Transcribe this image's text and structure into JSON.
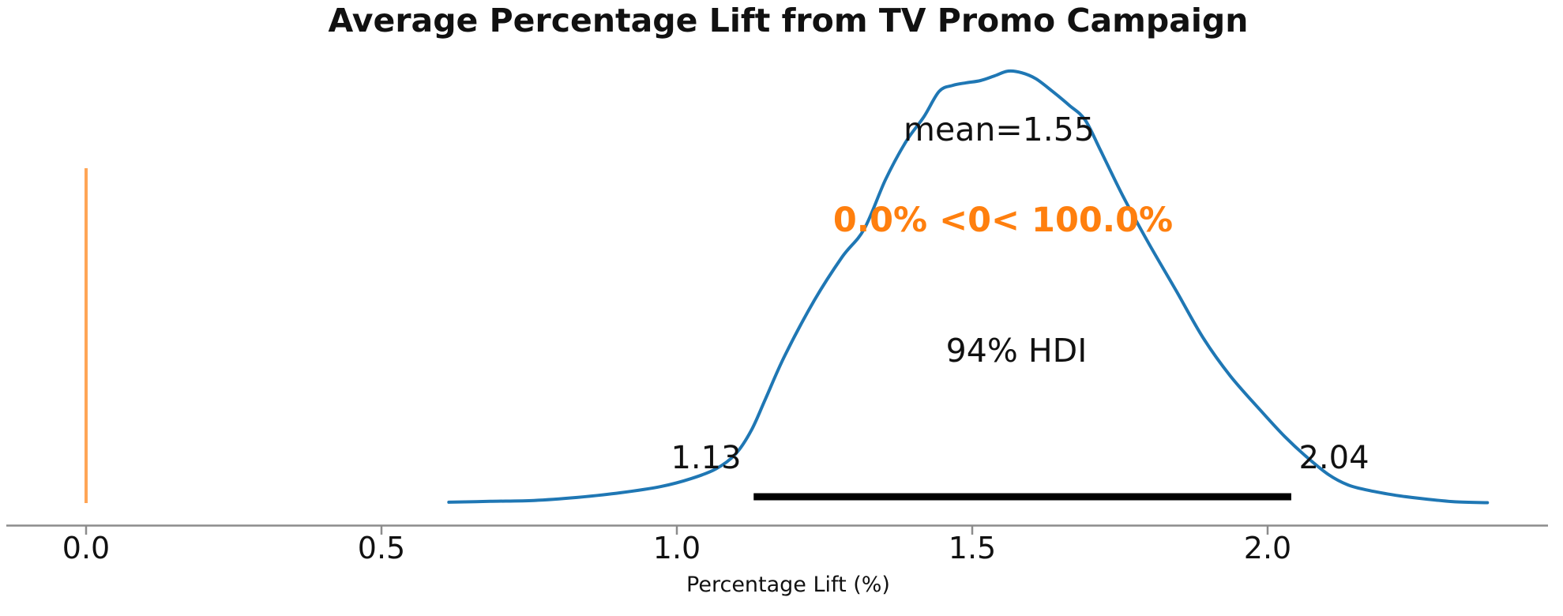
{
  "chart_data": {
    "type": "kde",
    "title": "Average Percentage Lift from TV Promo Campaign",
    "xlabel": "Percentage Lift (%)",
    "x_ticks": [
      0.0,
      0.5,
      1.0,
      1.5,
      2.0
    ],
    "x_tick_labels": [
      "0.0",
      "0.5",
      "1.0",
      "1.5",
      "2.0"
    ],
    "xlim": [
      -0.14,
      2.5
    ],
    "grid": false,
    "legend": "none",
    "mean": 1.55,
    "mean_label": "mean=1.55",
    "hdi": {
      "prob": "94%",
      "label": "94% HDI",
      "lower": 1.13,
      "upper": 2.04,
      "lower_label": "1.13",
      "upper_label": "2.04"
    },
    "ref_val": {
      "value": 0,
      "label": "0.0% <0< 100.0%",
      "pct_below": "0.0%",
      "pct_above": "100.0%"
    },
    "colors": {
      "curve": "#1f77b4",
      "ref_line": "#ff7f0e",
      "ref_text": "#ff7f0e",
      "hdi_bar": "#000000",
      "axis": "#8c8c8c",
      "text": "#111111"
    },
    "curve_points": [
      [
        0.614,
        0.002
      ],
      [
        0.684,
        0.004
      ],
      [
        0.758,
        0.006
      ],
      [
        0.831,
        0.013
      ],
      [
        0.905,
        0.024
      ],
      [
        0.972,
        0.038
      ],
      [
        1.025,
        0.057
      ],
      [
        1.066,
        0.079
      ],
      [
        1.099,
        0.113
      ],
      [
        1.126,
        0.168
      ],
      [
        1.15,
        0.241
      ],
      [
        1.183,
        0.342
      ],
      [
        1.233,
        0.47
      ],
      [
        1.28,
        0.57
      ],
      [
        1.317,
        0.634
      ],
      [
        1.353,
        0.748
      ],
      [
        1.387,
        0.835
      ],
      [
        1.418,
        0.894
      ],
      [
        1.444,
        0.953
      ],
      [
        1.467,
        0.967
      ],
      [
        1.49,
        0.973
      ],
      [
        1.514,
        0.978
      ],
      [
        1.538,
        0.989
      ],
      [
        1.561,
        1.0
      ],
      [
        1.584,
        0.996
      ],
      [
        1.608,
        0.982
      ],
      [
        1.635,
        0.954
      ],
      [
        1.664,
        0.921
      ],
      [
        1.691,
        0.887
      ],
      [
        1.718,
        0.814
      ],
      [
        1.755,
        0.711
      ],
      [
        1.798,
        0.603
      ],
      [
        1.845,
        0.492
      ],
      [
        1.891,
        0.382
      ],
      [
        1.937,
        0.294
      ],
      [
        1.993,
        0.207
      ],
      [
        2.029,
        0.154
      ],
      [
        2.065,
        0.108
      ],
      [
        2.103,
        0.066
      ],
      [
        2.136,
        0.042
      ],
      [
        2.172,
        0.029
      ],
      [
        2.217,
        0.018
      ],
      [
        2.263,
        0.01
      ],
      [
        2.317,
        0.003
      ],
      [
        2.372,
        0.001
      ]
    ]
  }
}
